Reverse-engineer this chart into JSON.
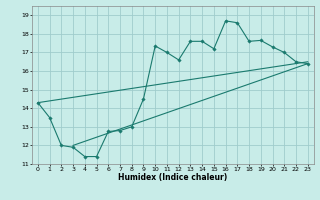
{
  "xlabel": "Humidex (Indice chaleur)",
  "bg_color": "#c8ece8",
  "grid_color": "#a0cccc",
  "line_color": "#1a7a6e",
  "xlim": [
    -0.5,
    23.5
  ],
  "ylim": [
    11,
    19.5
  ],
  "yticks": [
    11,
    12,
    13,
    14,
    15,
    16,
    17,
    18,
    19
  ],
  "xticks": [
    0,
    1,
    2,
    3,
    4,
    5,
    6,
    7,
    8,
    9,
    10,
    11,
    12,
    13,
    14,
    15,
    16,
    17,
    18,
    19,
    20,
    21,
    22,
    23
  ],
  "series1_x": [
    0,
    1,
    2,
    3,
    4,
    5,
    6,
    7,
    8,
    9,
    10,
    11,
    12,
    13,
    14,
    15,
    16,
    17,
    18,
    19,
    20,
    21,
    22,
    23
  ],
  "series1_y": [
    14.3,
    13.5,
    12.0,
    11.9,
    11.4,
    11.4,
    12.75,
    12.8,
    13.0,
    14.5,
    17.35,
    17.0,
    16.6,
    17.6,
    17.6,
    17.2,
    18.7,
    18.6,
    17.6,
    17.65,
    17.3,
    17.0,
    16.5,
    16.4
  ],
  "trend1_x": [
    0,
    23
  ],
  "trend1_y": [
    14.3,
    16.5
  ],
  "trend2_x": [
    3,
    23
  ],
  "trend2_y": [
    12.0,
    16.4
  ]
}
